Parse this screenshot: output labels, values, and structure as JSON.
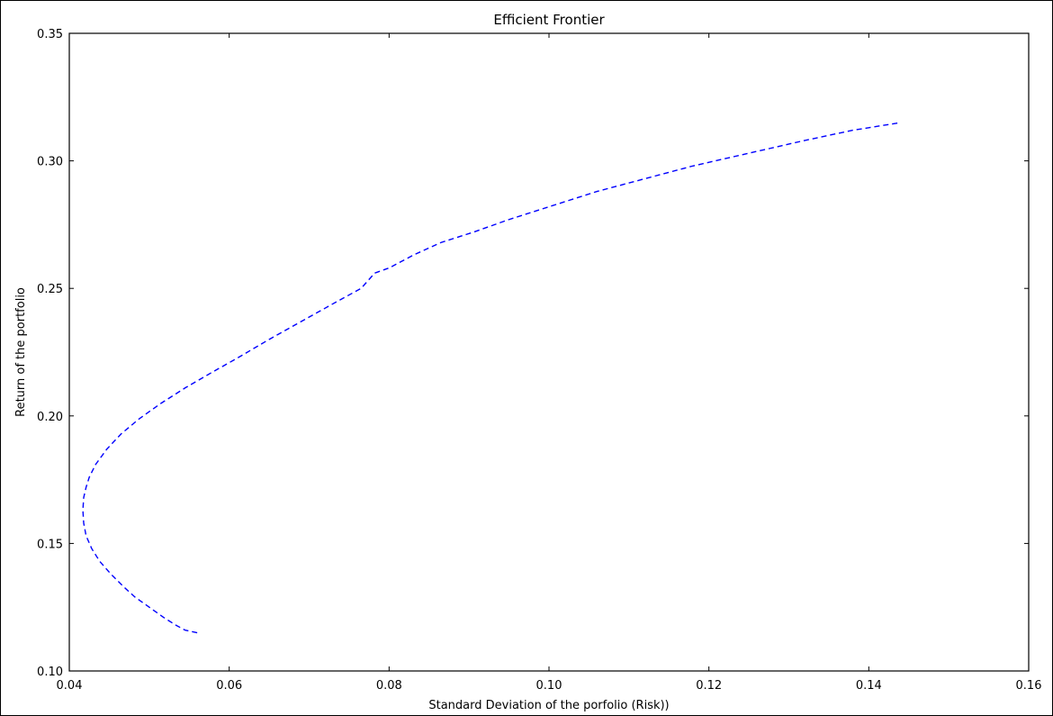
{
  "chart_data": {
    "type": "line",
    "title": "Efficient Frontier",
    "xlabel": "Standard Deviation of the porfolio (Risk))",
    "ylabel": "Return of the portfolio",
    "xlim": [
      0.04,
      0.16
    ],
    "ylim": [
      0.1,
      0.35
    ],
    "xticks": [
      "0.04",
      "0.06",
      "0.08",
      "0.10",
      "0.12",
      "0.14",
      "0.16"
    ],
    "yticks": [
      "0.10",
      "0.15",
      "0.20",
      "0.25",
      "0.30",
      "0.35"
    ],
    "grid": false,
    "series": [
      {
        "color": "#0000ff",
        "linestyle": "dashed",
        "x": [
          0.056,
          0.0545,
          0.0533,
          0.0518,
          0.05,
          0.0482,
          0.0468,
          0.0452,
          0.0438,
          0.0428,
          0.0421,
          0.0418,
          0.0417,
          0.0418,
          0.0421,
          0.0425,
          0.0433,
          0.0447,
          0.0465,
          0.0488,
          0.0515,
          0.0545,
          0.0578,
          0.0612,
          0.065,
          0.069,
          0.073,
          0.0765,
          0.0782,
          0.08,
          0.083,
          0.0865,
          0.0905,
          0.095,
          0.1,
          0.106,
          0.112,
          0.118,
          0.125,
          0.132,
          0.138,
          0.144
        ],
        "y": [
          0.115,
          0.116,
          0.118,
          0.121,
          0.125,
          0.129,
          0.133,
          0.138,
          0.143,
          0.148,
          0.153,
          0.158,
          0.163,
          0.168,
          0.172,
          0.176,
          0.181,
          0.187,
          0.193,
          0.199,
          0.205,
          0.211,
          0.217,
          0.223,
          0.23,
          0.237,
          0.244,
          0.25,
          0.256,
          0.258,
          0.263,
          0.268,
          0.272,
          0.277,
          0.282,
          0.288,
          0.293,
          0.298,
          0.303,
          0.308,
          0.312,
          0.315
        ]
      }
    ]
  }
}
